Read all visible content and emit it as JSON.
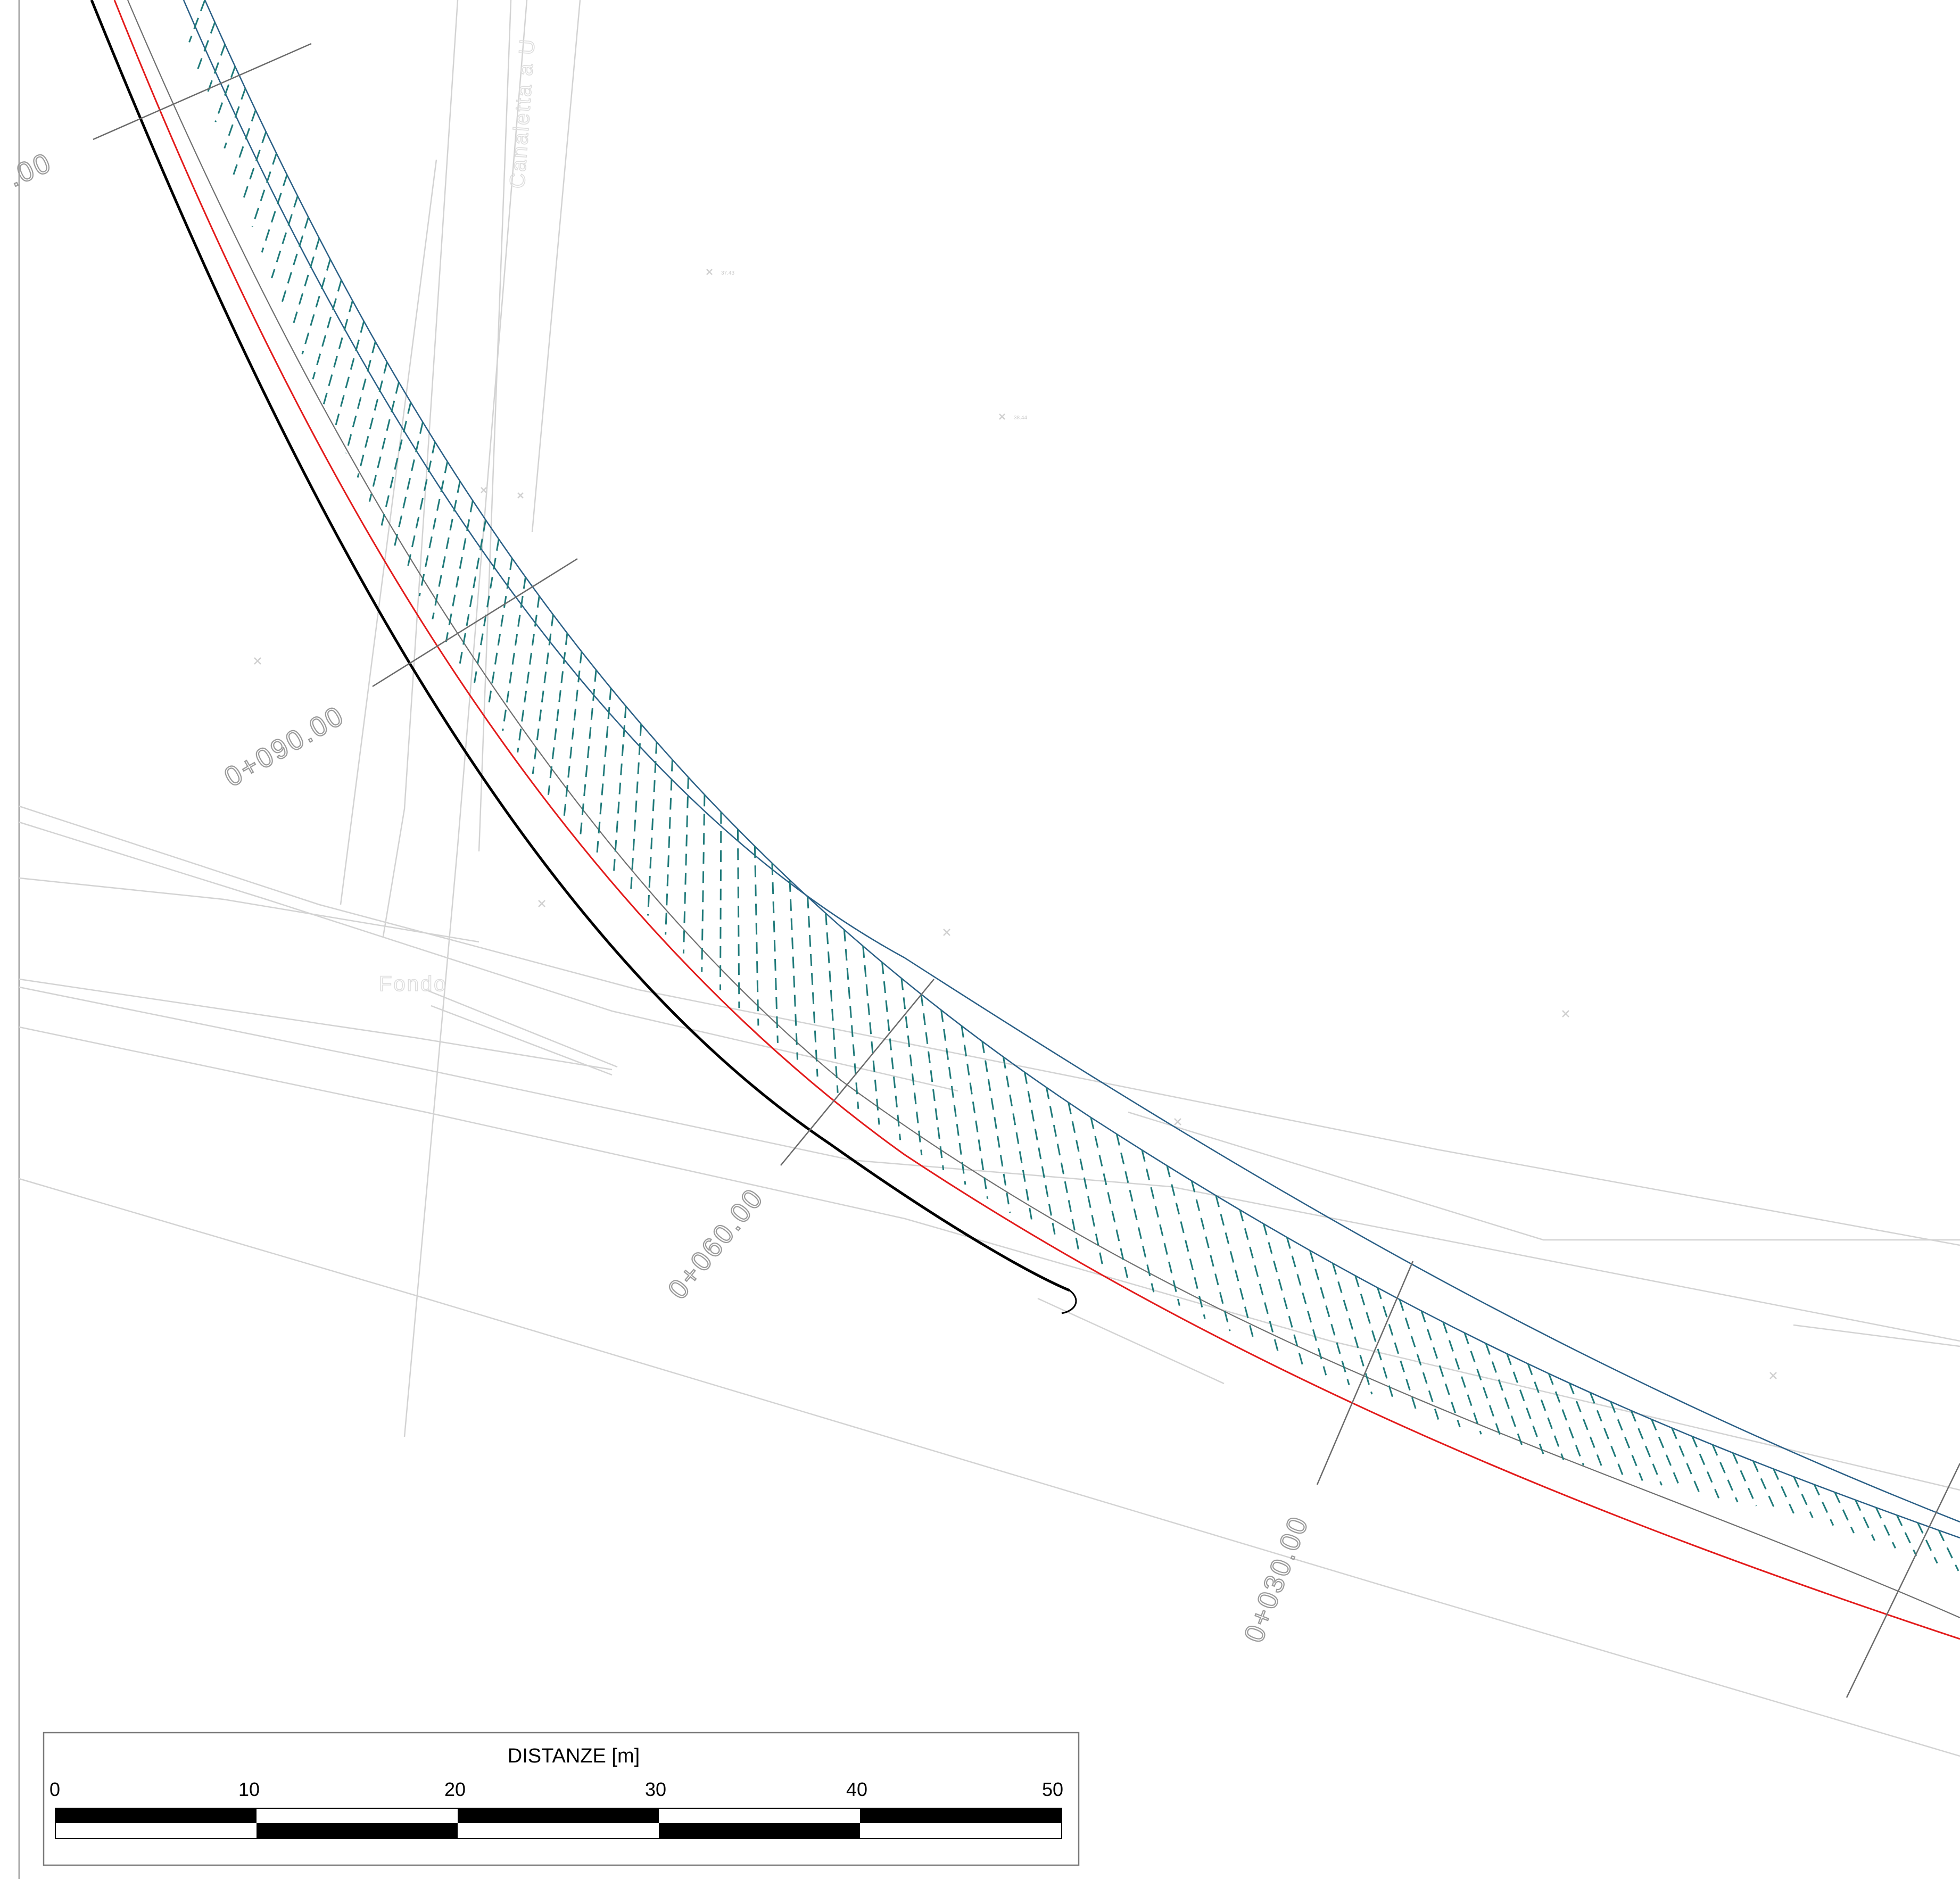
{
  "colors": {
    "background": "#ffffff",
    "axis_black": "#000000",
    "axis_red": "#e31b1b",
    "edge_blue": "#2a5f86",
    "hatch_teal": "#1f7a7a",
    "section_gray": "#6a6a6a",
    "context_gray": "#cfcfcf",
    "label_gray": "#9a9a9a"
  },
  "stations": {
    "top_partial": ".00",
    "s090": "0+090.00",
    "s060": "0+060.00",
    "s030": "0+030.00"
  },
  "background_labels": {
    "canaletta": "Canaletta a U",
    "fondo": "Fondo",
    "spot_1": "37.43",
    "spot_2": "38.44"
  },
  "scale_bar": {
    "title": "DISTANZE [m]",
    "ticks": [
      "0",
      "10",
      "20",
      "30",
      "40",
      "50"
    ]
  }
}
